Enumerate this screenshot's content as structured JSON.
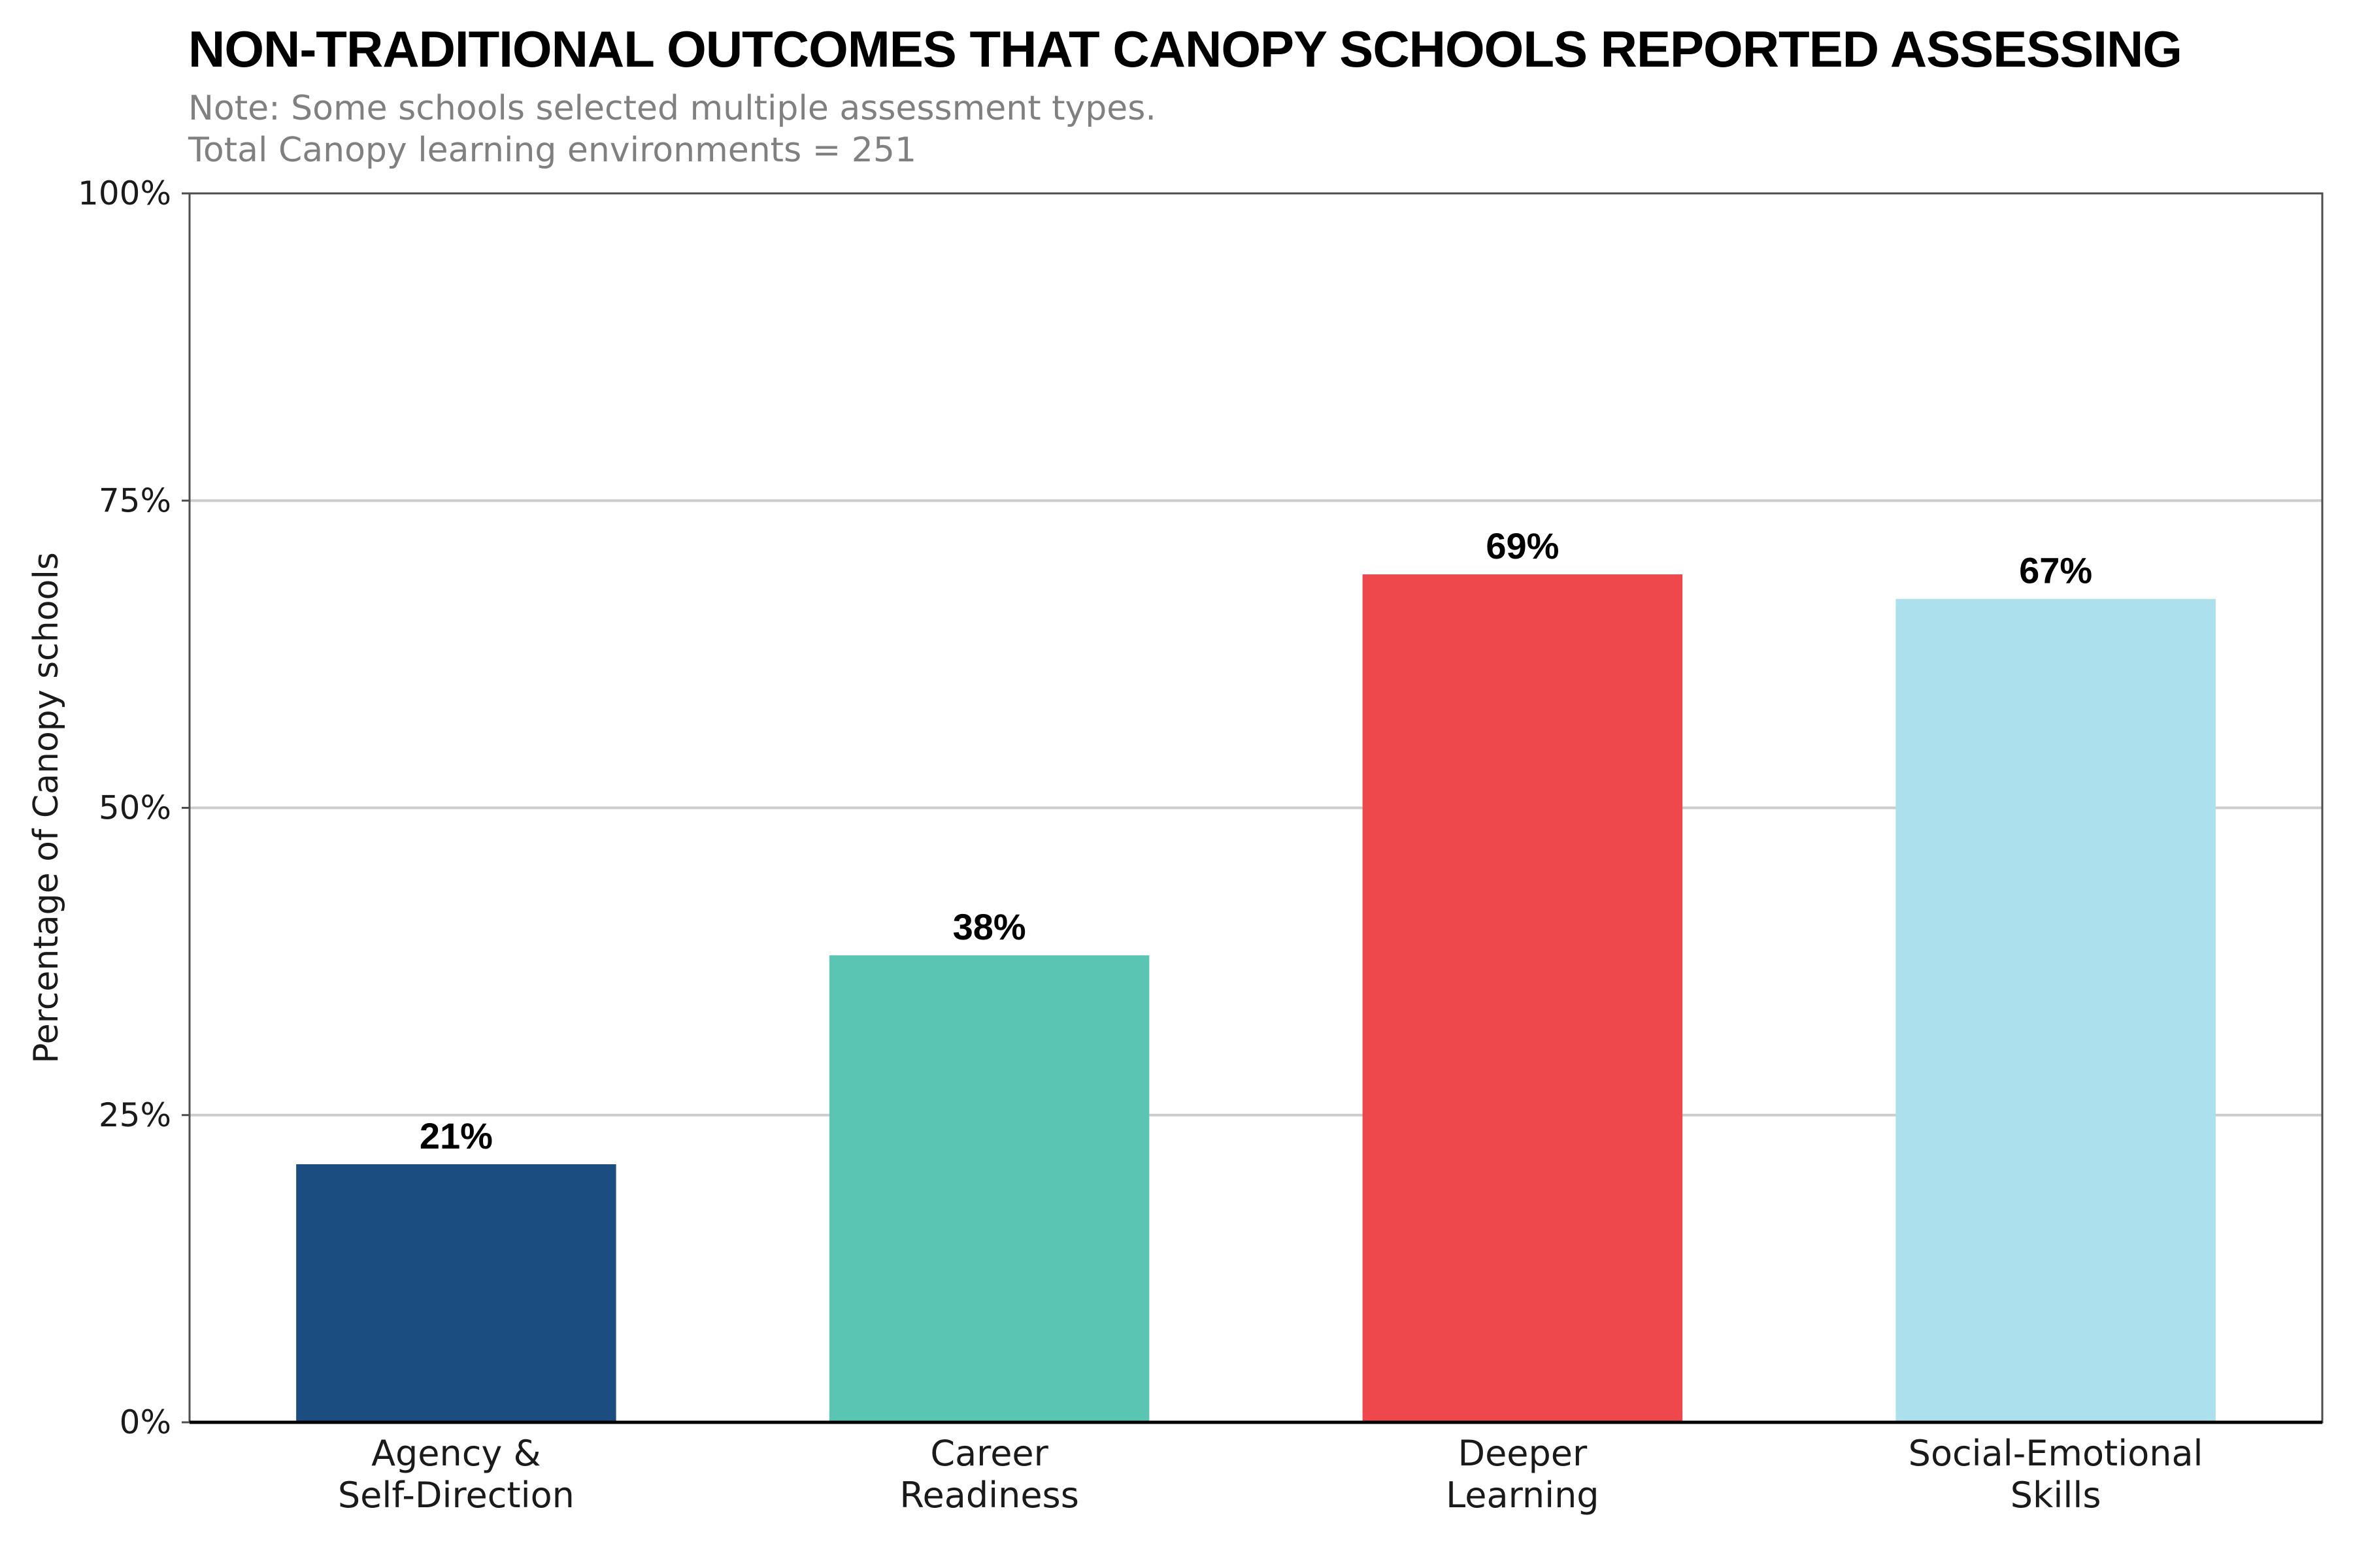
{
  "chart_data": {
    "type": "bar",
    "title": "NON-TRADITIONAL OUTCOMES THAT CANOPY SCHOOLS REPORTED ASSESSING",
    "subtitle_lines": [
      "Note: Some schools selected multiple assessment types.",
      "Total Canopy learning environments = 251"
    ],
    "ylabel": "Percentage of Canopy schools",
    "xlabel": "",
    "ylim": [
      0,
      100
    ],
    "y_ticks": [
      0,
      25,
      50,
      75,
      100
    ],
    "y_tick_labels": [
      "0%",
      "25%",
      "50%",
      "75%",
      "100%"
    ],
    "grid": "horizontal",
    "categories": [
      [
        "Agency &",
        "Self-Direction"
      ],
      [
        "Career",
        "Readiness"
      ],
      [
        "Deeper",
        "Learning"
      ],
      [
        "Social-Emotional",
        "Skills"
      ]
    ],
    "values": [
      21,
      38,
      69,
      67
    ],
    "value_labels": [
      "21%",
      "38%",
      "69%",
      "67%"
    ],
    "colors": [
      "#1c4d80",
      "#5bc5b4",
      "#ef484c",
      "#abe0ec"
    ],
    "gridline_color": "#cccccc",
    "frame_color": "#4d4d4d"
  }
}
